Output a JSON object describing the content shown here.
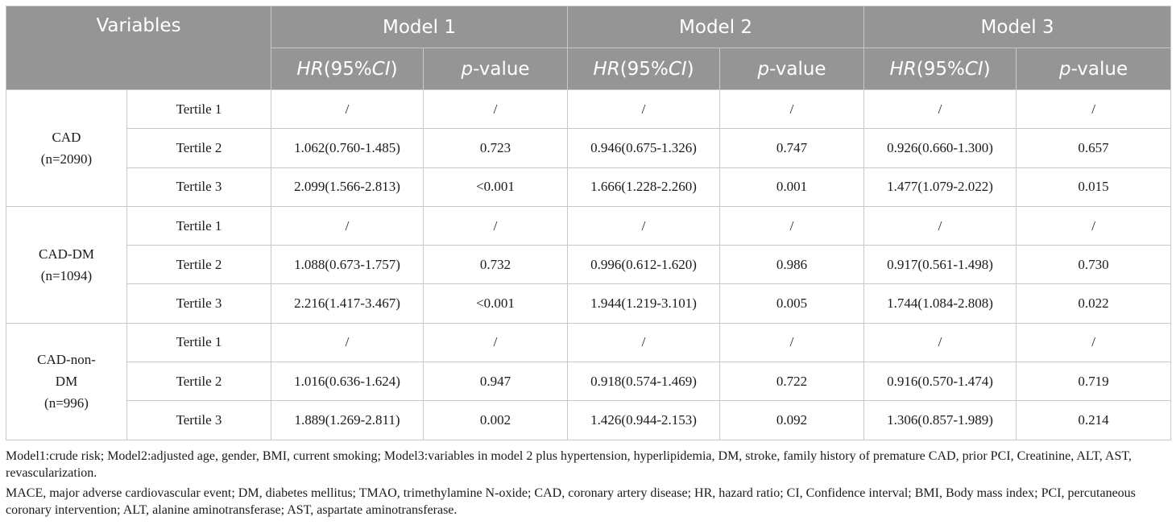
{
  "header": {
    "variables": "Variables",
    "models": [
      "Model 1",
      "Model 2",
      "Model 3"
    ],
    "hr_prefix": "HR",
    "hr_middle": "(95%",
    "hr_ci": "CI",
    "hr_suffix": ")",
    "p_prefix": "p",
    "p_suffix": "-value"
  },
  "groups": [
    {
      "name": "CAD",
      "n": "(n=2090)",
      "rows": [
        {
          "tertile": "Tertile 1",
          "cells": [
            "/",
            "/",
            "/",
            "/",
            "/",
            "/"
          ]
        },
        {
          "tertile": "Tertile 2",
          "cells": [
            "1.062(0.760-1.485)",
            "0.723",
            "0.946(0.675-1.326)",
            "0.747",
            "0.926(0.660-1.300)",
            "0.657"
          ]
        },
        {
          "tertile": "Tertile 3",
          "cells": [
            "2.099(1.566-2.813)",
            "<0.001",
            "1.666(1.228-2.260)",
            "0.001",
            "1.477(1.079-2.022)",
            "0.015"
          ]
        }
      ]
    },
    {
      "name": "CAD-DM",
      "n": "(n=1094)",
      "rows": [
        {
          "tertile": "Tertile 1",
          "cells": [
            "/",
            "/",
            "/",
            "/",
            "/",
            "/"
          ]
        },
        {
          "tertile": "Tertile 2",
          "cells": [
            "1.088(0.673-1.757)",
            "0.732",
            "0.996(0.612-1.620)",
            "0.986",
            "0.917(0.561-1.498)",
            "0.730"
          ]
        },
        {
          "tertile": "Tertile 3",
          "cells": [
            "2.216(1.417-3.467)",
            "<0.001",
            "1.944(1.219-3.101)",
            "0.005",
            "1.744(1.084-2.808)",
            "0.022"
          ]
        }
      ]
    },
    {
      "name": "CAD-non-",
      "name2": "DM",
      "n": "(n=996)",
      "rows": [
        {
          "tertile": "Tertile 1",
          "cells": [
            "/",
            "/",
            "/",
            "/",
            "/",
            "/"
          ]
        },
        {
          "tertile": "Tertile 2",
          "cells": [
            "1.016(0.636-1.624)",
            "0.947",
            "0.918(0.574-1.469)",
            "0.722",
            "0.916(0.570-1.474)",
            "0.719"
          ]
        },
        {
          "tertile": "Tertile 3",
          "cells": [
            "1.889(1.269-2.811)",
            "0.002",
            "1.426(0.944-2.153)",
            "0.092",
            "1.306(0.857-1.989)",
            "0.214"
          ]
        }
      ]
    }
  ],
  "notes": [
    "Model1:crude risk; Model2:adjusted age, gender, BMI, current smoking; Model3:variables in model 2 plus hypertension, hyperlipidemia, DM, stroke, family history of premature CAD, prior PCI, Creatinine, ALT, AST, revascularization.",
    "MACE, major adverse cardiovascular event; DM, diabetes mellitus; TMAO, trimethylamine N-oxide; CAD, coronary artery disease; HR, hazard ratio; CI, Confidence interval; BMI, Body mass index; PCI, percutaneous coronary intervention; ALT, alanine aminotransferase; AST, aspartate aminotransferase."
  ]
}
